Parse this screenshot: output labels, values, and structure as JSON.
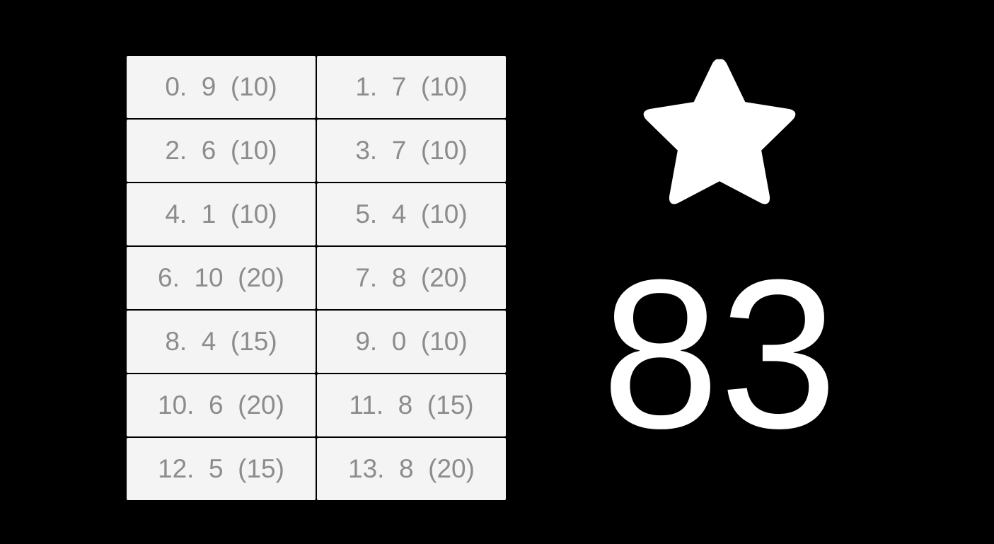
{
  "items": [
    {
      "label": "0.  9  (10)"
    },
    {
      "label": "1.  7  (10)"
    },
    {
      "label": "2.  6  (10)"
    },
    {
      "label": "3.  7  (10)"
    },
    {
      "label": "4.  1  (10)"
    },
    {
      "label": "5.  4  (10)"
    },
    {
      "label": "6.  10  (20)"
    },
    {
      "label": "7.  8  (20)"
    },
    {
      "label": "8.  4  (15)"
    },
    {
      "label": "9.  0  (10)"
    },
    {
      "label": "10.  6  (20)"
    },
    {
      "label": "11.  8  (15)"
    },
    {
      "label": "12.  5  (15)"
    },
    {
      "label": "13.  8  (20)"
    }
  ],
  "score": {
    "icon": "star-icon",
    "value": "83"
  },
  "colors": {
    "background": "#000000",
    "cell": "#f4f4f4",
    "cell_text": "#8c8c8c",
    "score": "#ffffff"
  }
}
